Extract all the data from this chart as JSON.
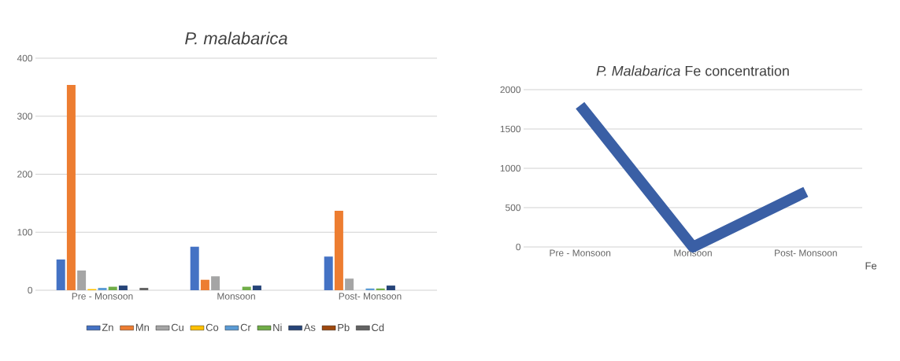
{
  "chart_data": [
    {
      "type": "bar",
      "title": "P. malabarica",
      "categories": [
        "Pre - Monsoon",
        "Monsoon",
        "Post- Monsoon"
      ],
      "series": [
        {
          "name": "Zn",
          "color": "#4472c4",
          "values": [
            53,
            75,
            58
          ]
        },
        {
          "name": "Mn",
          "color": "#ed7d31",
          "values": [
            354,
            18,
            137
          ]
        },
        {
          "name": "Cu",
          "color": "#a5a5a5",
          "values": [
            34,
            24,
            20
          ]
        },
        {
          "name": "Co",
          "color": "#ffc000",
          "values": [
            2,
            0,
            0
          ]
        },
        {
          "name": "Cr",
          "color": "#5b9bd5",
          "values": [
            4,
            0,
            3
          ]
        },
        {
          "name": "Ni",
          "color": "#70ad47",
          "values": [
            6,
            6,
            3
          ]
        },
        {
          "name": "As",
          "color": "#264478",
          "values": [
            8,
            8,
            8
          ]
        },
        {
          "name": "Pb",
          "color": "#9e480e",
          "values": [
            0,
            0,
            0
          ]
        },
        {
          "name": "Cd",
          "color": "#636363",
          "values": [
            4,
            0,
            0
          ]
        }
      ],
      "ylim": [
        0,
        400
      ],
      "yticks": [
        0,
        100,
        200,
        300,
        400
      ],
      "grid": "y",
      "legend": "bottom"
    },
    {
      "type": "line",
      "title": "*P. Malabarica* Fe concentration",
      "categories": [
        "Pre - Monsoon",
        "Monsoon",
        "Post- Monsoon"
      ],
      "series": [
        {
          "name": "Fe",
          "color": "#3a5fa5",
          "values": [
            1800,
            0,
            700
          ]
        }
      ],
      "ylim": [
        0,
        2000
      ],
      "yticks": [
        0,
        500,
        1000,
        1500,
        2000
      ],
      "grid": "y",
      "marker": "none"
    }
  ]
}
